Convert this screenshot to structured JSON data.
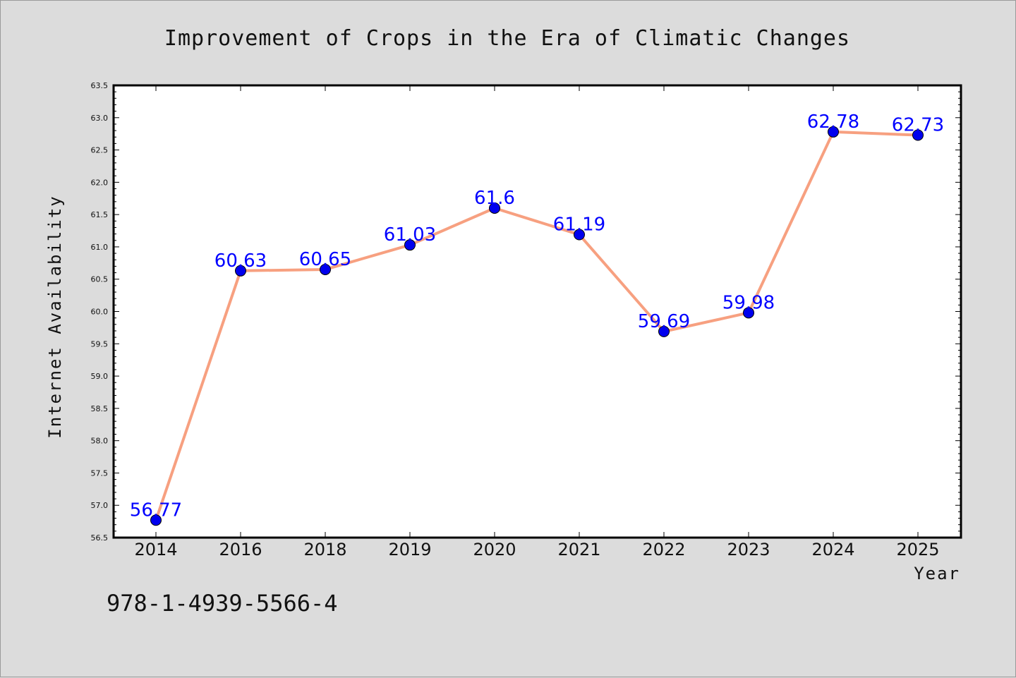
{
  "chart_data": {
    "type": "line",
    "title": "Improvement of Crops in the Era of Climatic Changes",
    "xlabel": "Year",
    "ylabel": "Internet Availability",
    "categories": [
      "2014",
      "2016",
      "2018",
      "2019",
      "2020",
      "2021",
      "2022",
      "2023",
      "2024",
      "2025"
    ],
    "series": [
      {
        "values": [
          56.77,
          60.63,
          60.65,
          61.03,
          61.6,
          61.19,
          59.69,
          59.98,
          62.78,
          62.73
        ],
        "data_labels": [
          "56.77",
          "60.63",
          "60.65",
          "61.03",
          "61.6",
          "61.19",
          "59.69",
          "59.98",
          "62.78",
          "62.73"
        ],
        "line_color": "#f7a080",
        "marker_color": "#0000ee"
      }
    ],
    "ylim": [
      56.5,
      63.5
    ],
    "yticks": [
      "56.5",
      "57.0",
      "57.5",
      "58.0",
      "58.5",
      "59.0",
      "59.5",
      "60.0",
      "60.5",
      "61.0",
      "61.5",
      "62.0",
      "62.5",
      "63.0",
      "63.5"
    ],
    "grid": false,
    "legend": "none"
  },
  "footer_text": "978-1-4939-5566-4",
  "colors": {
    "background": "#dcdcdc",
    "plot_background": "#ffffff",
    "label_color": "#0000ff"
  }
}
